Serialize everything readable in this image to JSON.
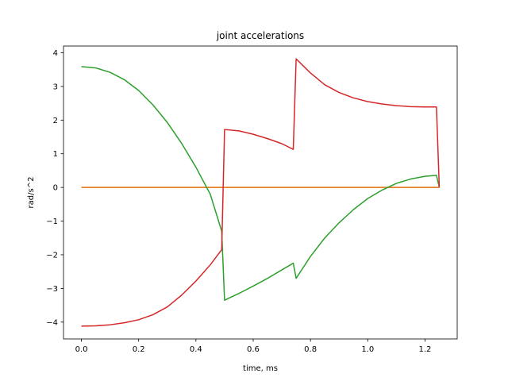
{
  "chart_data": {
    "type": "line",
    "title": "joint accelerations",
    "xlabel": "time, ms",
    "ylabel": "rad/s^2",
    "xlim": [
      -0.0625,
      1.3125
    ],
    "ylim": [
      -4.5,
      4.2
    ],
    "xticks": [
      0.0,
      0.2,
      0.4,
      0.6,
      0.8,
      1.0,
      1.2
    ],
    "xtick_labels": [
      "0.0",
      "0.2",
      "0.4",
      "0.6",
      "0.8",
      "1.0",
      "1.2"
    ],
    "yticks": [
      -4,
      -3,
      -2,
      -1,
      0,
      1,
      2,
      3,
      4
    ],
    "ytick_labels": [
      "−4",
      "−3",
      "−2",
      "−1",
      "0",
      "1",
      "2",
      "3",
      "4"
    ],
    "grid": false,
    "series": [
      {
        "color": "#1f77b4",
        "x": [
          0.0,
          1.25
        ],
        "y": [
          0.0,
          0.0
        ]
      },
      {
        "color": "#ff7f0e",
        "x": [
          0.0,
          1.25
        ],
        "y": [
          0.0,
          0.0
        ]
      },
      {
        "color": "#2ca02c",
        "x": [
          0.0,
          0.05,
          0.1,
          0.15,
          0.2,
          0.25,
          0.3,
          0.35,
          0.4,
          0.45,
          0.49,
          0.5,
          0.55,
          0.6,
          0.65,
          0.7,
          0.74,
          0.75,
          0.8,
          0.85,
          0.9,
          0.95,
          1.0,
          1.05,
          1.1,
          1.15,
          1.2,
          1.24,
          1.25
        ],
        "y": [
          3.59,
          3.55,
          3.42,
          3.2,
          2.88,
          2.45,
          1.93,
          1.31,
          0.6,
          -0.2,
          -1.3,
          -3.35,
          -3.15,
          -2.93,
          -2.7,
          -2.45,
          -2.25,
          -2.7,
          -2.05,
          -1.5,
          -1.05,
          -0.66,
          -0.33,
          -0.08,
          0.12,
          0.25,
          0.33,
          0.36,
          0.0
        ]
      },
      {
        "color": "#d62728",
        "x": [
          0.0,
          0.05,
          0.1,
          0.15,
          0.2,
          0.25,
          0.3,
          0.35,
          0.4,
          0.45,
          0.49,
          0.5,
          0.55,
          0.6,
          0.65,
          0.7,
          0.74,
          0.75,
          0.8,
          0.85,
          0.9,
          0.95,
          1.0,
          1.05,
          1.1,
          1.15,
          1.2,
          1.24,
          1.25
        ],
        "y": [
          -4.12,
          -4.11,
          -4.08,
          -4.02,
          -3.93,
          -3.78,
          -3.55,
          -3.2,
          -2.78,
          -2.3,
          -1.85,
          1.72,
          1.68,
          1.58,
          1.45,
          1.3,
          1.13,
          3.82,
          3.4,
          3.05,
          2.82,
          2.66,
          2.55,
          2.48,
          2.43,
          2.4,
          2.39,
          2.39,
          0.0
        ]
      }
    ]
  }
}
